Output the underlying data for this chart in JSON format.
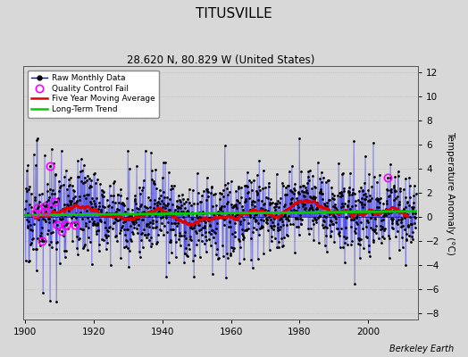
{
  "title": "TITUSVILLE",
  "subtitle": "28.620 N, 80.829 W (United States)",
  "ylabel": "Temperature Anomaly (°C)",
  "attribution": "Berkeley Earth",
  "year_start": 1900,
  "year_end": 2013,
  "ylim": [
    -8.5,
    12.5
  ],
  "yticks": [
    -8,
    -6,
    -4,
    -2,
    0,
    2,
    4,
    6,
    8,
    10,
    12
  ],
  "xticks": [
    1900,
    1920,
    1940,
    1960,
    1980,
    2000
  ],
  "background_color": "#d8d8d8",
  "plot_background": "#d8d8d8",
  "raw_line_color": "#0000ee",
  "dot_color": "#000000",
  "moving_avg_color": "#dd0000",
  "trend_color": "#00cc00",
  "qc_color": "#ff00ff",
  "grid_color": "#bbbbbb",
  "title_fontsize": 11,
  "subtitle_fontsize": 8.5,
  "seed": 17
}
